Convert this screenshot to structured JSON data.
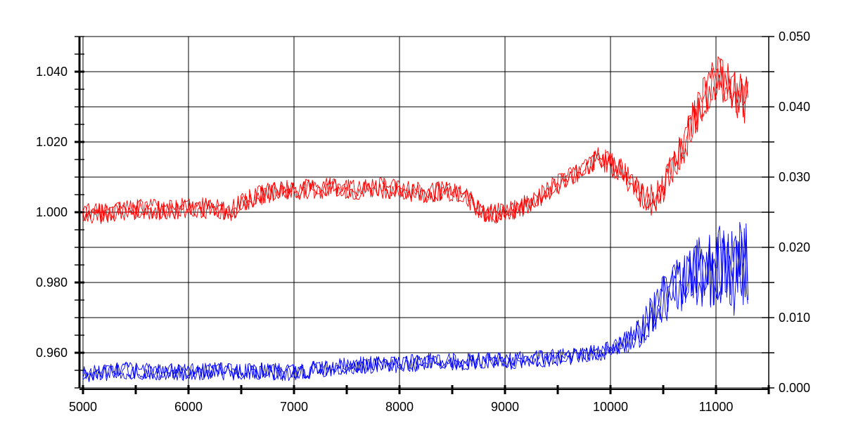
{
  "chart_data": {
    "type": "line",
    "title": "",
    "xlabel": "",
    "ylabel_left": "",
    "ylabel_right": "",
    "xlim": [
      5000,
      11500
    ],
    "ylim_left": [
      0.95,
      1.05
    ],
    "ylim_right": [
      0.0,
      0.05
    ],
    "grid": true,
    "legend": "none",
    "x_ticks": [
      "5000",
      "6000",
      "7000",
      "8000",
      "9000",
      "10000",
      "11000"
    ],
    "y_left_ticks": [
      "0.960",
      "0.980",
      "1.000",
      "1.020",
      "1.040"
    ],
    "y_right_ticks": [
      "0.000",
      "0.010",
      "0.020",
      "0.030",
      "0.040",
      "0.050"
    ],
    "series": [
      {
        "axis": "left",
        "color": "#ff0000",
        "x": [
          5000,
          5200,
          5400,
          5600,
          5800,
          6000,
          6200,
          6400,
          6600,
          6800,
          7000,
          7200,
          7400,
          7600,
          7800,
          8000,
          8200,
          8400,
          8600,
          8800,
          9000,
          9200,
          9400,
          9600,
          9800,
          9900,
          10000,
          10100,
          10200,
          10300,
          10400,
          10500,
          10600,
          10700,
          10800,
          10900,
          11000,
          11100,
          11200,
          11300
        ],
        "values": [
          1.0,
          0.9995,
          1.0005,
          1.001,
          1.0005,
          1.0015,
          1.001,
          1.0005,
          1.004,
          1.006,
          1.0065,
          1.0065,
          1.0075,
          1.006,
          1.007,
          1.0065,
          1.0055,
          1.006,
          1.005,
          1.0,
          0.9995,
          1.002,
          1.006,
          1.01,
          1.0135,
          1.0155,
          1.0135,
          1.0125,
          1.0085,
          1.0045,
          1.0035,
          1.0075,
          1.0135,
          1.0195,
          1.027,
          1.0335,
          1.0385,
          1.0365,
          1.0335,
          1.0315
        ]
      },
      {
        "axis": "right",
        "color": "#0000ff",
        "x": [
          5000,
          5200,
          5400,
          5600,
          5800,
          6000,
          6200,
          6400,
          6600,
          6800,
          7000,
          7200,
          7400,
          7600,
          7800,
          8000,
          8200,
          8400,
          8600,
          8800,
          9000,
          9200,
          9400,
          9600,
          9800,
          9900,
          10000,
          10100,
          10200,
          10300,
          10400,
          10500,
          10600,
          10700,
          10800,
          10900,
          11000,
          11100,
          11200,
          11300
        ],
        "values": [
          0.002,
          0.0022,
          0.0025,
          0.0024,
          0.0023,
          0.0022,
          0.0024,
          0.0023,
          0.0025,
          0.0023,
          0.0022,
          0.0026,
          0.003,
          0.0032,
          0.0033,
          0.0034,
          0.0036,
          0.0038,
          0.0037,
          0.004,
          0.0038,
          0.004,
          0.0042,
          0.0045,
          0.0048,
          0.005,
          0.0055,
          0.006,
          0.007,
          0.0082,
          0.0105,
          0.0125,
          0.014,
          0.015,
          0.0165,
          0.0165,
          0.0175,
          0.0165,
          0.017,
          0.0165
        ]
      }
    ]
  }
}
